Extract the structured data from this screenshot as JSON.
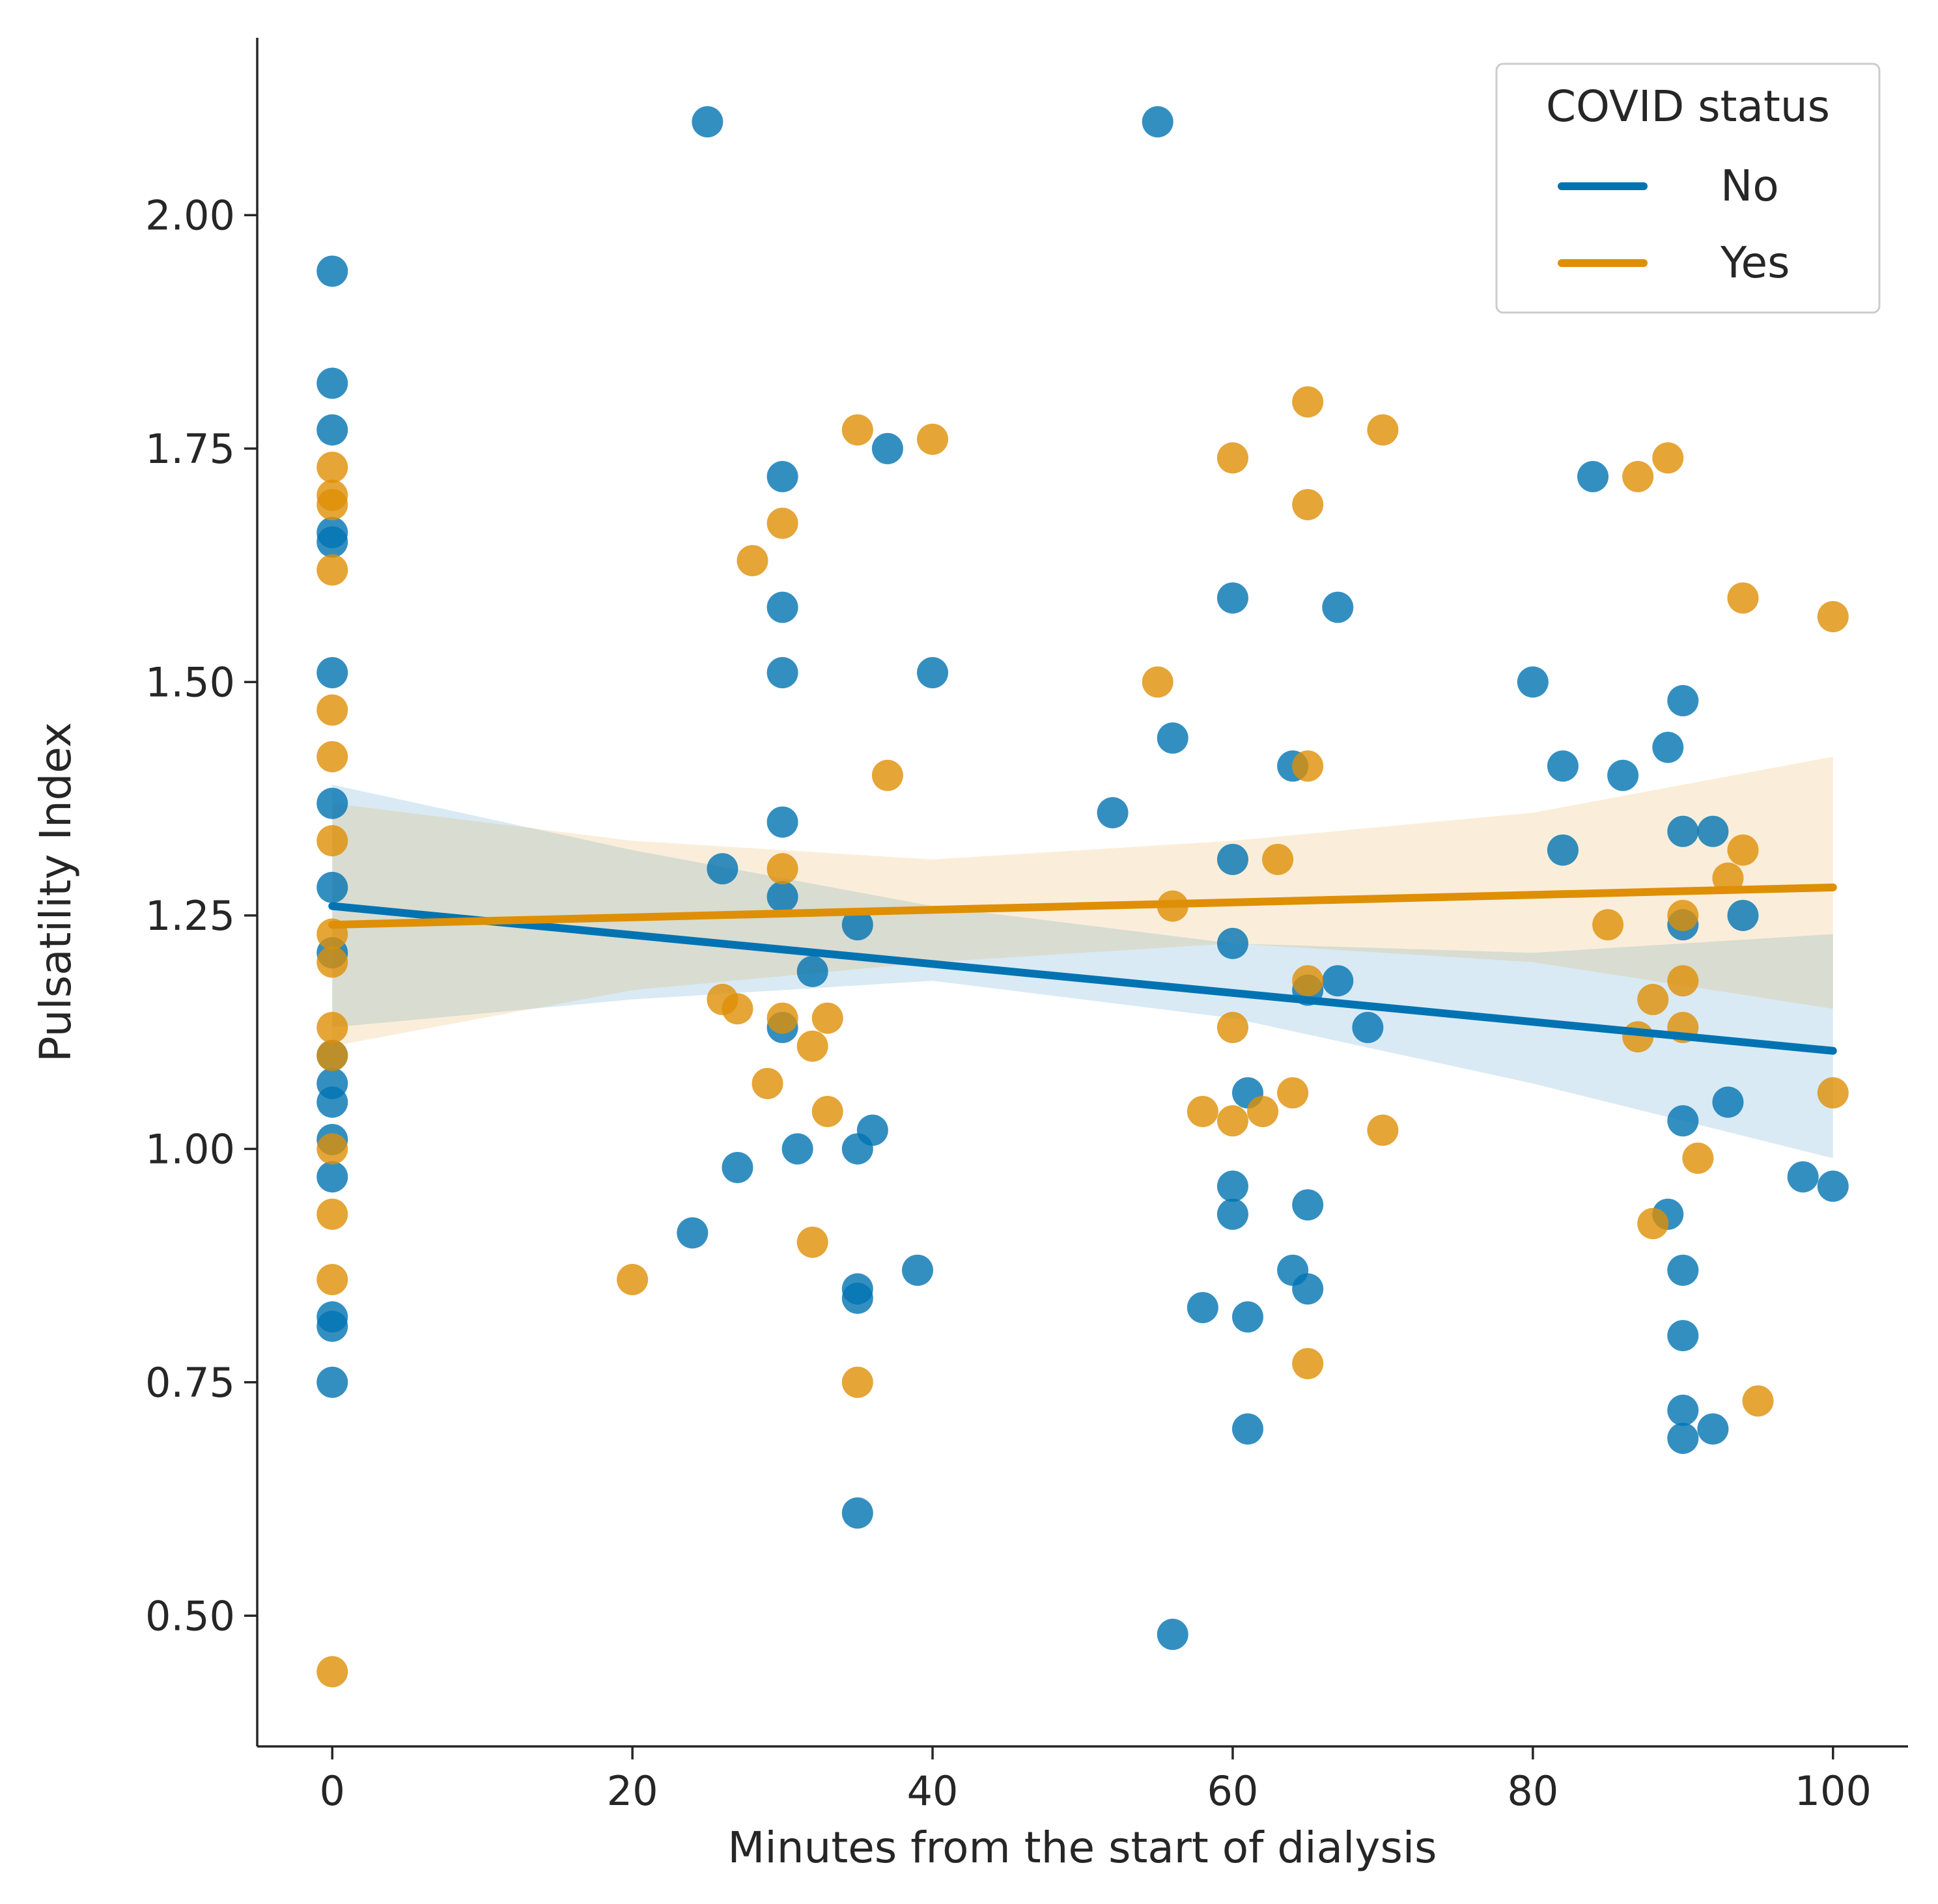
{
  "chart_data": {
    "type": "scatter",
    "xlabel": "Minutes from the start of dialysis",
    "ylabel": "Pulsatility Index",
    "xlim": [
      -5,
      105
    ],
    "ylim": [
      0.36,
      2.19
    ],
    "xticks": [
      0,
      20,
      40,
      60,
      80,
      100
    ],
    "xtick_labels": [
      "0",
      "20",
      "40",
      "60",
      "80",
      "100"
    ],
    "yticks": [
      0.5,
      0.75,
      1.0,
      1.25,
      1.5,
      1.75,
      2.0
    ],
    "ytick_labels": [
      "0.50",
      "0.75",
      "1.00",
      "1.25",
      "1.50",
      "1.75",
      "2.00"
    ],
    "legend": {
      "title": "COVID status",
      "position": "top-right"
    },
    "series": [
      {
        "name": "No",
        "color": "#0173b2",
        "points": [
          [
            0,
            1.94
          ],
          [
            0,
            1.82
          ],
          [
            0,
            1.77
          ],
          [
            0,
            1.66
          ],
          [
            0,
            1.65
          ],
          [
            0,
            1.51
          ],
          [
            0,
            1.37
          ],
          [
            0,
            1.28
          ],
          [
            0,
            1.21
          ],
          [
            0,
            1.1
          ],
          [
            0,
            1.07
          ],
          [
            0,
            1.05
          ],
          [
            0,
            1.01
          ],
          [
            0,
            0.97
          ],
          [
            0,
            0.82
          ],
          [
            0,
            0.81
          ],
          [
            0,
            0.75
          ],
          [
            24,
            0.91
          ],
          [
            25,
            2.1
          ],
          [
            26,
            1.3
          ],
          [
            27,
            0.98
          ],
          [
            30,
            1.72
          ],
          [
            30,
            1.58
          ],
          [
            30,
            1.51
          ],
          [
            30,
            1.35
          ],
          [
            30,
            1.27
          ],
          [
            30,
            1.13
          ],
          [
            31,
            1.0
          ],
          [
            32,
            1.19
          ],
          [
            35,
            1.24
          ],
          [
            35,
            1.0
          ],
          [
            35,
            0.85
          ],
          [
            35,
            0.84
          ],
          [
            35,
            0.61
          ],
          [
            36,
            1.02
          ],
          [
            37,
            1.75
          ],
          [
            39,
            0.87
          ],
          [
            40,
            1.51
          ],
          [
            52,
            1.36
          ],
          [
            55,
            2.1
          ],
          [
            56,
            1.44
          ],
          [
            56,
            0.48
          ],
          [
            58,
            0.83
          ],
          [
            60,
            1.59
          ],
          [
            60,
            1.31
          ],
          [
            60,
            1.22
          ],
          [
            60,
            0.96
          ],
          [
            60,
            0.93
          ],
          [
            61,
            1.06
          ],
          [
            61,
            0.82
          ],
          [
            61,
            0.7
          ],
          [
            64,
            1.41
          ],
          [
            64,
            0.87
          ],
          [
            65,
            1.17
          ],
          [
            65,
            0.94
          ],
          [
            65,
            0.85
          ],
          [
            67,
            1.58
          ],
          [
            67,
            1.18
          ],
          [
            69,
            1.13
          ],
          [
            80,
            1.5
          ],
          [
            82,
            1.41
          ],
          [
            82,
            1.32
          ],
          [
            84,
            1.72
          ],
          [
            86,
            1.4
          ],
          [
            89,
            1.43
          ],
          [
            89,
            0.93
          ],
          [
            90,
            1.48
          ],
          [
            90,
            1.34
          ],
          [
            90,
            1.24
          ],
          [
            90,
            1.03
          ],
          [
            90,
            0.87
          ],
          [
            90,
            0.8
          ],
          [
            90,
            0.72
          ],
          [
            90,
            0.69
          ],
          [
            92,
            1.34
          ],
          [
            92,
            0.7
          ],
          [
            93,
            1.05
          ],
          [
            94,
            1.25
          ],
          [
            98,
            0.97
          ],
          [
            100,
            0.96
          ]
        ],
        "fit": {
          "x": [
            0,
            100
          ],
          "y": [
            1.26,
            1.105
          ]
        },
        "ci_band": {
          "x": [
            0,
            20,
            40,
            60,
            80,
            100
          ],
          "lower": [
            1.13,
            1.16,
            1.18,
            1.14,
            1.07,
            0.99
          ],
          "upper": [
            1.39,
            1.32,
            1.26,
            1.22,
            1.21,
            1.23
          ]
        }
      },
      {
        "name": "Yes",
        "color": "#de8f05",
        "points": [
          [
            0,
            1.73
          ],
          [
            0,
            1.7
          ],
          [
            0,
            1.69
          ],
          [
            0,
            1.62
          ],
          [
            0,
            1.47
          ],
          [
            0,
            1.42
          ],
          [
            0,
            1.33
          ],
          [
            0,
            1.23
          ],
          [
            0,
            1.2
          ],
          [
            0,
            1.13
          ],
          [
            0,
            1.1
          ],
          [
            0,
            1.0
          ],
          [
            0,
            0.93
          ],
          [
            0,
            0.86
          ],
          [
            0,
            0.44
          ],
          [
            20,
            0.86
          ],
          [
            26,
            1.16
          ],
          [
            27,
            1.15
          ],
          [
            28,
            1.63
          ],
          [
            29,
            1.07
          ],
          [
            30,
            1.67
          ],
          [
            30,
            1.3
          ],
          [
            30,
            1.14
          ],
          [
            32,
            1.11
          ],
          [
            32,
            0.9
          ],
          [
            33,
            1.14
          ],
          [
            33,
            1.04
          ],
          [
            35,
            1.77
          ],
          [
            35,
            0.75
          ],
          [
            37,
            1.4
          ],
          [
            40,
            1.76
          ],
          [
            55,
            1.5
          ],
          [
            56,
            1.26
          ],
          [
            58,
            1.04
          ],
          [
            60,
            1.74
          ],
          [
            60,
            1.13
          ],
          [
            60,
            1.03
          ],
          [
            62,
            1.04
          ],
          [
            63,
            1.31
          ],
          [
            64,
            1.06
          ],
          [
            65,
            1.8
          ],
          [
            65,
            1.69
          ],
          [
            65,
            1.41
          ],
          [
            65,
            1.18
          ],
          [
            65,
            0.77
          ],
          [
            70,
            1.77
          ],
          [
            70,
            1.02
          ],
          [
            85,
            1.24
          ],
          [
            87,
            1.72
          ],
          [
            87,
            1.12
          ],
          [
            88,
            1.16
          ],
          [
            88,
            0.92
          ],
          [
            89,
            1.74
          ],
          [
            90,
            1.25
          ],
          [
            90,
            1.18
          ],
          [
            90,
            1.13
          ],
          [
            91,
            0.99
          ],
          [
            93,
            1.29
          ],
          [
            94,
            1.59
          ],
          [
            94,
            1.32
          ],
          [
            95,
            0.73
          ],
          [
            100,
            1.57
          ],
          [
            100,
            1.06
          ]
        ],
        "fit": {
          "x": [
            0,
            100
          ],
          "y": [
            1.24,
            1.28
          ]
        },
        "ci_band": {
          "x": [
            0,
            20,
            40,
            60,
            80,
            100
          ],
          "lower": [
            1.11,
            1.17,
            1.2,
            1.22,
            1.2,
            1.15
          ],
          "upper": [
            1.37,
            1.33,
            1.31,
            1.33,
            1.36,
            1.42
          ]
        }
      }
    ]
  }
}
